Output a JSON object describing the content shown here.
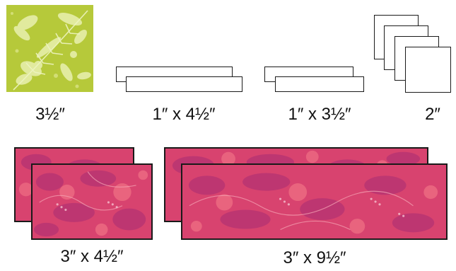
{
  "colors": {
    "green_fabric": "#b6c93a",
    "green_pattern": "#e9f0b0",
    "pink_fabric": "#d8436f",
    "pink_dark": "#a82d73",
    "pink_light": "#ef6f84",
    "outline": "#1a1a1a"
  },
  "pieces": {
    "green_square": {
      "label": "3½″",
      "fabric": "green batik"
    },
    "strip_1x4": {
      "label": "1″ x 4½″"
    },
    "strip_1x3": {
      "label": "1″ x 3½″"
    },
    "squares_2": {
      "label": "2″"
    },
    "pink_3x4": {
      "label": "3″ x 4½″",
      "fabric": "pink batik"
    },
    "pink_3x9": {
      "label": "3″ x 9½″",
      "fabric": "pink batik"
    }
  }
}
